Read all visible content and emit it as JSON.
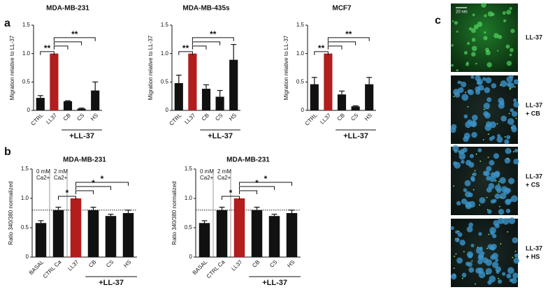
{
  "panel_labels": [
    "a",
    "b",
    "c"
  ],
  "chart_data": [
    {
      "type": "bar",
      "title": "MDA-MB-231",
      "y_label": "Migration relative to LL-37",
      "categories": [
        "CTRL",
        "LL37",
        "CB",
        "CS",
        "HS"
      ],
      "values": [
        0.22,
        1.0,
        0.16,
        0.03,
        0.35
      ],
      "errors": [
        0.04,
        0,
        0.01,
        0.01,
        0.15
      ],
      "colors": [
        "#111111",
        "#b21d1d",
        "#111111",
        "#111111",
        "#111111"
      ],
      "ylim": [
        0,
        1.5
      ],
      "yticks": [
        0,
        0.5,
        {
          "value": 1,
          "label": "1.0"
        },
        1.5
      ],
      "group_label": "+LL-37",
      "significance": [
        "**",
        "**"
      ]
    },
    {
      "type": "bar",
      "title": "MDA-MB-435s",
      "y_label": "Migration relative to LL-37",
      "categories": [
        "CTRL",
        "LL37",
        "CB",
        "CS",
        "HS"
      ],
      "values": [
        0.48,
        1.0,
        0.38,
        0.24,
        0.89
      ],
      "errors": [
        0.14,
        0,
        0.07,
        0.11,
        0.27
      ],
      "colors": [
        "#111111",
        "#b21d1d",
        "#111111",
        "#111111",
        "#111111"
      ],
      "ylim": [
        0,
        1.5
      ],
      "yticks": [
        0,
        0.5,
        {
          "value": 1,
          "label": "1.0"
        },
        1.5
      ],
      "group_label": "+LL-37",
      "significance": [
        "**",
        "**"
      ]
    },
    {
      "type": "bar",
      "title": "MCF7",
      "y_label": "Migration relative to LL-37",
      "categories": [
        "CTRL",
        "LL37",
        "CB",
        "CS",
        "HS"
      ],
      "values": [
        0.46,
        1.0,
        0.28,
        0.07,
        0.46
      ],
      "errors": [
        0.12,
        0,
        0.06,
        0.01,
        0.12
      ],
      "colors": [
        "#111111",
        "#b21d1d",
        "#111111",
        "#111111",
        "#111111"
      ],
      "ylim": [
        0,
        1.5
      ],
      "yticks": [
        0,
        0.5,
        {
          "value": 1,
          "label": "1.0"
        },
        1.5
      ],
      "group_label": "+LL-37",
      "significance": [
        "**",
        "**"
      ]
    },
    {
      "type": "bar",
      "title": "MDA-MB-231",
      "y_label": "Ratio 340/380 normalized",
      "categories": [
        "BASAL",
        "CTRL Ca",
        "LL37",
        "CB",
        "CS",
        "HS"
      ],
      "values": [
        0.58,
        0.8,
        1.0,
        0.8,
        0.7,
        0.75
      ],
      "errors": [
        0.04,
        0.05,
        0,
        0.05,
        0.03,
        0.05
      ],
      "colors": [
        "#111111",
        "#111111",
        "#b21d1d",
        "#111111",
        "#111111",
        "#111111"
      ],
      "ylim": [
        0,
        1.5
      ],
      "yticks": [
        0,
        0.5,
        {
          "value": 1,
          "label": "1.0"
        },
        1.5
      ],
      "reference_line": 0.8,
      "annotations": [
        [
          "0 mM",
          "Ca2+"
        ],
        [
          "2 mM",
          "Ca2+"
        ]
      ],
      "group_label": "+LL-37",
      "significance": [
        "*",
        "*",
        "*"
      ]
    },
    {
      "type": "bar",
      "title": "MDA-MB-231",
      "y_label": "Ratio 340/380 normalized",
      "categories": [
        "BASAL",
        "CTRL Ca",
        "LL37",
        "CB",
        "CS",
        "HS"
      ],
      "values": [
        0.58,
        0.8,
        1.0,
        0.8,
        0.7,
        0.75
      ],
      "errors": [
        0.04,
        0.05,
        0,
        0.05,
        0.03,
        0.05
      ],
      "colors": [
        "#111111",
        "#111111",
        "#b21d1d",
        "#111111",
        "#111111",
        "#111111"
      ],
      "ylim": [
        0,
        1.5
      ],
      "yticks": [
        0,
        0.5,
        {
          "value": 1,
          "label": "1.0"
        },
        1.5
      ],
      "reference_line": 0.8,
      "annotations": [
        [
          "0 mM",
          "Ca2+"
        ],
        [
          "2 mM",
          "Ca2+"
        ]
      ],
      "group_label": "+LL-37",
      "significance": [
        "*",
        "*",
        "*"
      ]
    }
  ],
  "images": {
    "scale_bar": "20 nm",
    "labels": [
      [
        "LL-37"
      ],
      [
        "LL-37",
        "+ CB"
      ],
      [
        "LL-37",
        "+ CS"
      ],
      [
        "LL-37",
        "+ HS"
      ]
    ]
  }
}
